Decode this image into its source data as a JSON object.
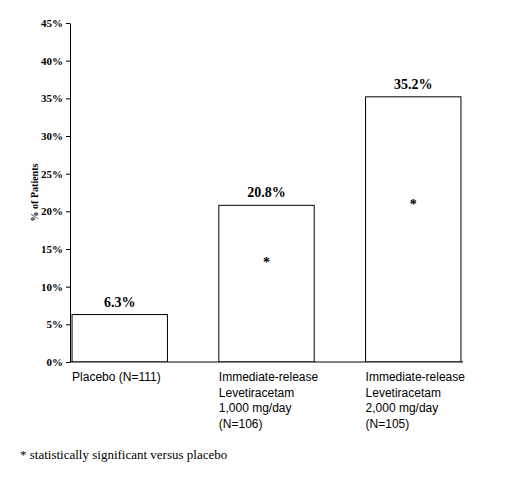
{
  "chart_data": {
    "type": "bar",
    "y_label": "% of Patients",
    "categories": [
      "Placebo (N=111)",
      "Immediate-release\nLevetiracetam\n1,000 mg/day\n(N=106)",
      "Immediate-release\nLevetiracetam\n2,000 mg/day\n(N=105)"
    ],
    "values": [
      6.3,
      20.8,
      35.2
    ],
    "value_labels": [
      "6.3%",
      "20.8%",
      "35.2%"
    ],
    "data_labels": true,
    "color": "#ffffff",
    "ylim": [
      0,
      45
    ],
    "yticks": [
      {
        "value": 0,
        "label": "0%"
      },
      {
        "value": 5,
        "label": "5%"
      },
      {
        "value": 10,
        "label": "10%"
      },
      {
        "value": 15,
        "label": "15%"
      },
      {
        "value": 20,
        "label": "20%"
      },
      {
        "value": 25,
        "label": "25%"
      },
      {
        "value": 30,
        "label": "30%"
      },
      {
        "value": 35,
        "label": "35%"
      },
      {
        "value": 40,
        "label": "40%"
      },
      {
        "value": 45,
        "label": "45%"
      }
    ],
    "grid": false,
    "annotations": [
      {
        "text": "*",
        "x": 1,
        "y": 13.3
      },
      {
        "text": "*",
        "x": 2,
        "y": 21.0
      }
    ],
    "footnote": "* statistically significant versus placebo"
  }
}
